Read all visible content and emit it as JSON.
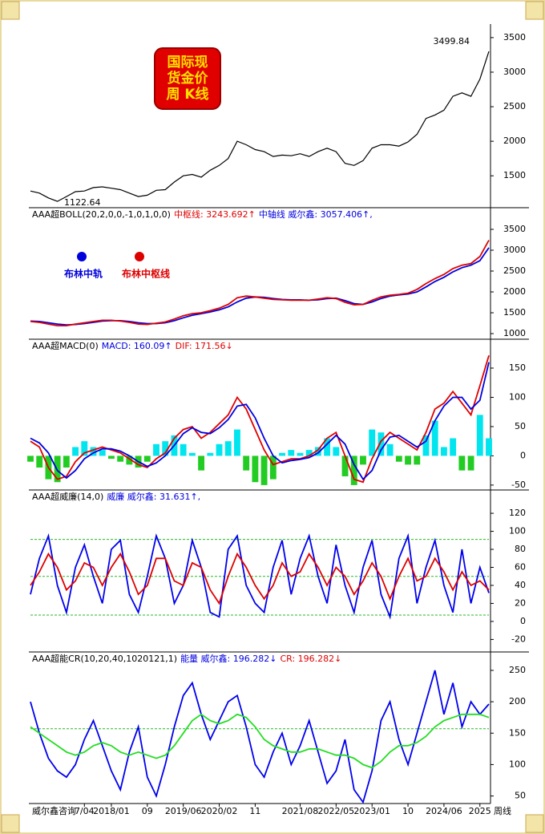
{
  "badge": [
    "国际现",
    "货金价",
    "周 K线"
  ],
  "x_axis": {
    "footer_left": "威尔鑫咨询",
    "categories": [
      null,
      null,
      null,
      null,
      null,
      null,
      "7/04",
      null,
      null,
      "2018/01",
      null,
      null,
      null,
      "09",
      null,
      null,
      null,
      "2019/06",
      null,
      null,
      null,
      "2020/02",
      null,
      null,
      null,
      "11",
      null,
      null,
      null,
      null,
      "2021/08",
      null,
      null,
      null,
      "2022/05",
      null,
      null,
      null,
      "2023/01",
      null,
      null,
      null,
      "10",
      null,
      null,
      null,
      "2024/06",
      null,
      null,
      null,
      "2025",
      null
    ],
    "right_label": "周线"
  },
  "chart_data": [
    {
      "type": "line",
      "annotations": [
        "3499.84",
        "1122.64"
      ],
      "series": [
        {
          "color": "#000000",
          "values": [
            1280,
            1250,
            1180,
            1130,
            1200,
            1270,
            1280,
            1330,
            1340,
            1320,
            1300,
            1250,
            1200,
            1220,
            1290,
            1300,
            1410,
            1500,
            1520,
            1480,
            1580,
            1650,
            1750,
            2000,
            1950,
            1880,
            1850,
            1780,
            1800,
            1790,
            1820,
            1780,
            1850,
            1900,
            1850,
            1680,
            1650,
            1720,
            1900,
            1950,
            1950,
            1930,
            1990,
            2100,
            2330,
            2380,
            2450,
            2650,
            2700,
            2650,
            2900,
            3300
          ]
        }
      ],
      "ylim": [
        1050,
        3580
      ],
      "yticks": [
        1500,
        2000,
        2500,
        3000,
        3500
      ]
    },
    {
      "type": "line",
      "header": [
        {
          "text": "AAA超BOLL(20,2,0,0,-1,0,1,0,0)",
          "color": "#000000"
        },
        {
          "text": "中枢线: 3243.692↑",
          "color": "#e00000"
        },
        {
          "text": "中轴线 威尔鑫: 3057.406↑,",
          "color": "#0000e0"
        }
      ],
      "series": [
        {
          "name": "布林中轨",
          "color": "#0000dd",
          "values": [
            1300,
            1290,
            1260,
            1230,
            1210,
            1220,
            1240,
            1270,
            1300,
            1310,
            1310,
            1290,
            1260,
            1240,
            1240,
            1260,
            1310,
            1380,
            1440,
            1480,
            1520,
            1570,
            1640,
            1760,
            1850,
            1880,
            1870,
            1840,
            1820,
            1810,
            1810,
            1800,
            1810,
            1840,
            1850,
            1790,
            1720,
            1700,
            1760,
            1840,
            1900,
            1930,
            1950,
            2000,
            2120,
            2250,
            2350,
            2480,
            2580,
            2640,
            2750,
            3060
          ]
        },
        {
          "name": "布林中枢线",
          "color": "#dd0000",
          "values": [
            1290,
            1270,
            1230,
            1190,
            1190,
            1230,
            1260,
            1290,
            1320,
            1320,
            1300,
            1270,
            1230,
            1220,
            1250,
            1280,
            1350,
            1430,
            1480,
            1500,
            1550,
            1610,
            1700,
            1860,
            1900,
            1880,
            1850,
            1820,
            1810,
            1800,
            1800,
            1800,
            1830,
            1860,
            1840,
            1750,
            1690,
            1700,
            1800,
            1880,
            1920,
            1940,
            1970,
            2060,
            2200,
            2320,
            2420,
            2560,
            2640,
            2680,
            2850,
            3240
          ]
        }
      ],
      "ylim": [
        885,
        4000
      ],
      "yticks": [
        1000,
        1500,
        2000,
        2500,
        3000,
        3500
      ]
    },
    {
      "type": "macd",
      "header": [
        {
          "text": "AAA超MACD(0)",
          "color": "#000000"
        },
        {
          "text": "MACD: 160.09↑",
          "color": "#0000e0"
        },
        {
          "text": "DIF: 171.56↓",
          "color": "#e00000"
        }
      ],
      "bars": {
        "positive_color": "#00e5ee",
        "negative_color": "#22cc22",
        "values": [
          -10,
          -20,
          -40,
          -45,
          -20,
          15,
          25,
          15,
          10,
          -5,
          -10,
          -15,
          -20,
          -10,
          20,
          25,
          35,
          20,
          5,
          -25,
          5,
          20,
          25,
          45,
          -25,
          -45,
          -50,
          -40,
          5,
          10,
          5,
          10,
          15,
          30,
          15,
          -35,
          -50,
          -15,
          45,
          40,
          20,
          -10,
          -15,
          -15,
          35,
          60,
          15,
          30,
          -25,
          -25,
          70,
          30
        ]
      },
      "series": [
        {
          "color": "#e00000",
          "values": [
            25,
            15,
            -20,
            -40,
            -35,
            -10,
            5,
            10,
            15,
            10,
            5,
            -5,
            -15,
            -20,
            -5,
            5,
            30,
            45,
            50,
            30,
            40,
            55,
            70,
            100,
            80,
            45,
            10,
            -15,
            -10,
            -5,
            -5,
            0,
            10,
            30,
            40,
            0,
            -40,
            -45,
            -5,
            25,
            40,
            30,
            20,
            10,
            40,
            80,
            90,
            110,
            90,
            70,
            120,
            171.56
          ]
        },
        {
          "color": "#0000e0",
          "values": [
            30,
            22,
            5,
            -25,
            -38,
            -25,
            -5,
            5,
            12,
            12,
            8,
            0,
            -10,
            -18,
            -12,
            0,
            18,
            38,
            48,
            40,
            38,
            48,
            62,
            85,
            88,
            65,
            30,
            0,
            -12,
            -8,
            -6,
            -3,
            5,
            20,
            35,
            20,
            -15,
            -40,
            -25,
            10,
            32,
            35,
            25,
            15,
            25,
            60,
            85,
            100,
            100,
            80,
            95,
            160.09
          ]
        }
      ],
      "ylim": [
        -57,
        198
      ],
      "yticks": [
        -50,
        0,
        50,
        100,
        150
      ]
    },
    {
      "type": "line",
      "header": [
        {
          "text": "AAA超威廉(14,0)",
          "color": "#000000"
        },
        {
          "text": "威廉 威尔鑫: 31.631↑,",
          "color": "#0000e0"
        }
      ],
      "reference_lines": [
        91,
        50,
        7
      ],
      "series": [
        {
          "color": "#0000ee",
          "values": [
            30,
            70,
            95,
            40,
            10,
            60,
            85,
            50,
            20,
            80,
            90,
            30,
            10,
            50,
            95,
            70,
            20,
            40,
            90,
            60,
            10,
            5,
            80,
            95,
            40,
            20,
            10,
            60,
            90,
            30,
            70,
            95,
            50,
            20,
            85,
            40,
            10,
            60,
            90,
            30,
            5,
            70,
            95,
            20,
            60,
            90,
            40,
            10,
            80,
            20,
            60,
            31.631
          ]
        },
        {
          "color": "#dd0000",
          "values": [
            40,
            55,
            75,
            60,
            35,
            45,
            65,
            60,
            40,
            60,
            75,
            55,
            30,
            40,
            70,
            70,
            45,
            40,
            65,
            60,
            35,
            20,
            50,
            75,
            60,
            40,
            25,
            40,
            65,
            50,
            55,
            75,
            60,
            40,
            60,
            50,
            30,
            45,
            65,
            50,
            25,
            50,
            70,
            45,
            50,
            70,
            55,
            35,
            55,
            40,
            45,
            35
          ]
        }
      ],
      "ylim": [
        -33,
        145
      ],
      "yticks": [
        -20,
        0,
        20,
        40,
        60,
        80,
        100,
        120
      ]
    },
    {
      "type": "line",
      "header": [
        {
          "text": "AAA超能CR(10,20,40,1020121,1)",
          "color": "#000000"
        },
        {
          "text": "能量 威尔鑫: 196.282↓",
          "color": "#0000e0"
        },
        {
          "text": "CR: 196.282↓",
          "color": "#e00000"
        }
      ],
      "reference_lines": [
        157
      ],
      "series": [
        {
          "color": "#0000ee",
          "values": [
            200,
            150,
            110,
            90,
            80,
            100,
            140,
            170,
            130,
            90,
            60,
            120,
            160,
            80,
            50,
            100,
            160,
            210,
            230,
            180,
            140,
            170,
            200,
            210,
            160,
            100,
            80,
            120,
            150,
            100,
            130,
            170,
            120,
            70,
            90,
            140,
            60,
            40,
            90,
            170,
            200,
            140,
            100,
            150,
            200,
            250,
            180,
            230,
            160,
            200,
            180,
            196.282
          ]
        },
        {
          "color": "#22dd22",
          "values": [
            160,
            150,
            140,
            130,
            120,
            115,
            120,
            130,
            135,
            130,
            120,
            115,
            120,
            115,
            110,
            115,
            130,
            150,
            170,
            180,
            170,
            165,
            170,
            180,
            175,
            160,
            140,
            130,
            125,
            120,
            120,
            125,
            125,
            120,
            115,
            115,
            110,
            100,
            95,
            105,
            120,
            130,
            130,
            135,
            145,
            160,
            170,
            175,
            180,
            180,
            180,
            175
          ]
        }
      ],
      "ylim": [
        38,
        278
      ],
      "yticks": [
        50,
        100,
        150,
        200,
        250
      ]
    }
  ]
}
